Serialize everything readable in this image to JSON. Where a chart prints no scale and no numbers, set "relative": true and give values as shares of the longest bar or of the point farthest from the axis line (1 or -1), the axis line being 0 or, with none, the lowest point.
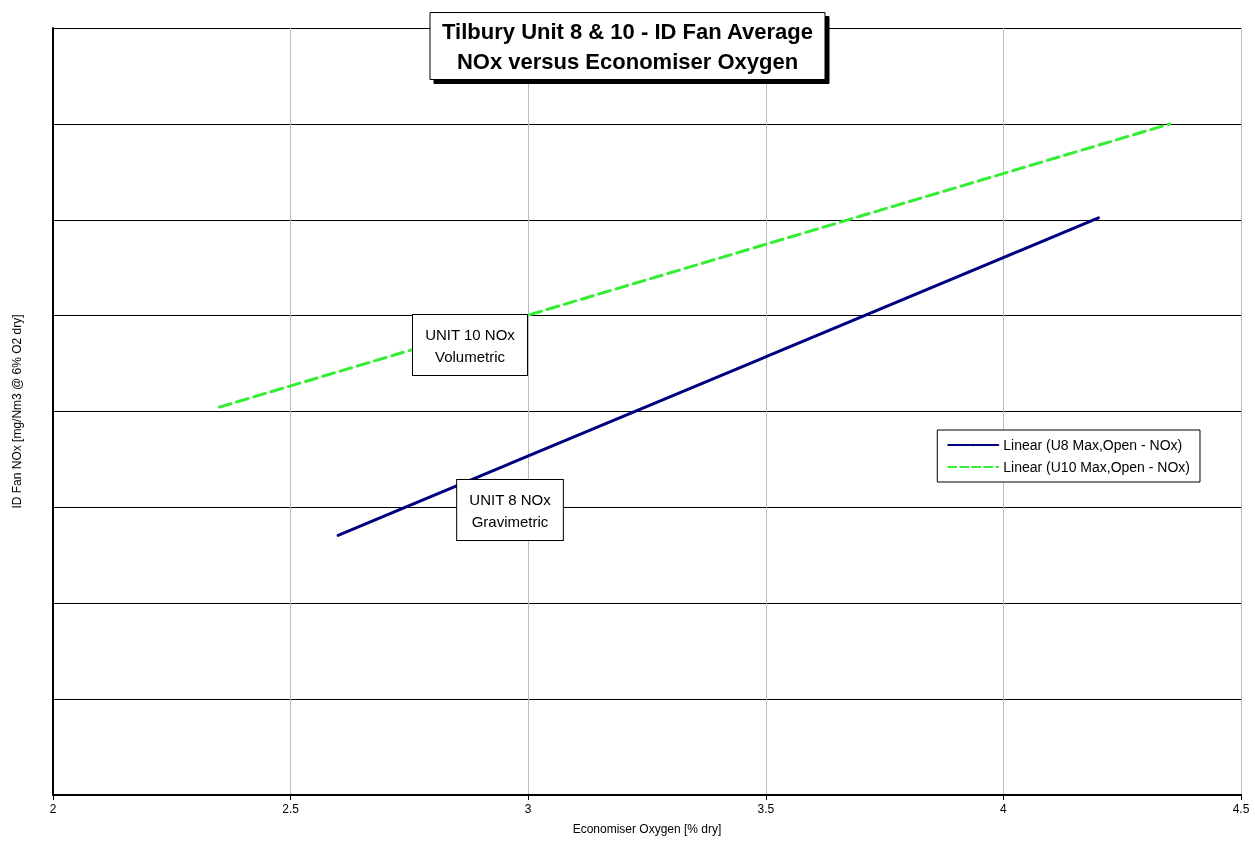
{
  "chart_data": {
    "type": "line",
    "title": "Tilbury Unit 8 & 10 - ID Fan Average\nNOx versus Economiser Oxygen",
    "xlabel": "Economiser Oxygen [% dry]",
    "ylabel": "ID Fan NOx [mg/Nm3 @ 6% O2 dry]",
    "relative": true,
    "xlim": [
      2,
      4.5
    ],
    "xticks": [
      2,
      2.5,
      3,
      3.5,
      4,
      4.5
    ],
    "grid": true,
    "legend": "right",
    "marker": "none",
    "series": [
      {
        "name": "Linear (U8 Max,Open - NOx)",
        "color": "#000080",
        "line_style": "solid",
        "x": [
          2.6,
          4.2
        ],
        "values": [
          0.387,
          0.86
        ]
      },
      {
        "name": "Linear (U10 Max,Open - NOx)",
        "color": "#33ee33",
        "line_style": "dashed",
        "x": [
          2.35,
          4.35
        ],
        "values": [
          0.578,
          1
        ]
      }
    ],
    "annotations": [
      "UNIT 10 NOx\nVolumetric",
      "UNIT 8 NOx\nGravimetric"
    ]
  }
}
